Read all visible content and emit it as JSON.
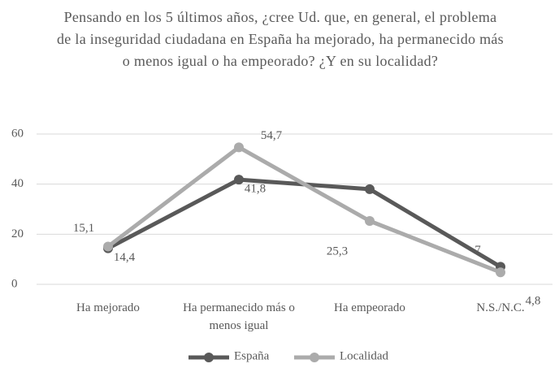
{
  "chart_data": {
    "type": "line",
    "title": "Pensando en los 5 últimos años, ¿cree Ud. que, en general, el problema de la inseguridad ciudadana en España ha mejorado, ha permanecido más o menos igual o ha empeorado? ¿Y en su localidad?",
    "categories": [
      "Ha mejorado",
      "Ha permanecido más o menos igual",
      "Ha empeorado",
      "N.S./N.C."
    ],
    "series": [
      {
        "name": "España",
        "color": "#595959",
        "values": [
          14.4,
          41.8,
          38,
          7
        ],
        "value_labels": [
          "14,4",
          "41,8",
          null,
          "7"
        ]
      },
      {
        "name": "Localidad",
        "color": "#ababab",
        "values": [
          15.1,
          54.7,
          25.3,
          4.8
        ],
        "value_labels": [
          "15,1",
          "54,7",
          "25,3",
          "4,8"
        ]
      }
    ],
    "ylim": [
      0,
      60
    ],
    "yticks": [
      0,
      20,
      40,
      60
    ],
    "grid": true,
    "legend": "bottom"
  }
}
